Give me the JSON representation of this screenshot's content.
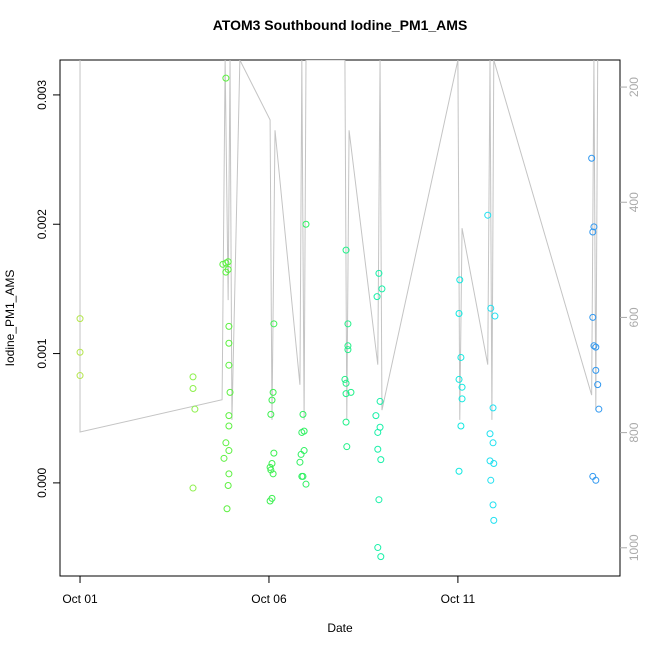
{
  "chart_data": {
    "type": "scatter",
    "title": "ATOM3 Southbound Iodine_PM1_AMS",
    "x_label": "Date",
    "y_label": "Iodine_PM1_AMS",
    "xlim": [
      0.47,
      15.29
    ],
    "ylim": [
      -0.00072,
      0.00327
    ],
    "y2lim": [
      1049,
      153
    ],
    "xticks": [
      {
        "value": 1,
        "label": "Oct 01"
      },
      {
        "value": 6,
        "label": "Oct 06"
      },
      {
        "value": 11,
        "label": "Oct 11"
      }
    ],
    "yticks": [
      {
        "value": 0,
        "label": "0.000"
      },
      0.001,
      0.002,
      0.003
    ],
    "y2ticks": [
      200,
      400,
      600,
      800,
      1000
    ],
    "series": [
      {
        "color": "#b4e64b",
        "x": [
          1.0,
          1.0,
          1.0
        ],
        "values": [
          0.00127,
          0.00101,
          0.00083
        ]
      },
      {
        "color": "#8cf04a",
        "x": [
          3.99,
          3.99,
          4.04,
          3.99
        ],
        "values": [
          0.00082,
          0.00073,
          0.00057,
          -4e-05
        ]
      },
      {
        "color": "#5cf040",
        "x": [
          4.78,
          4.86,
          4.92,
          4.86,
          4.92,
          4.86,
          4.94,
          4.94,
          4.94,
          4.97,
          4.94,
          4.94,
          4.86,
          4.81,
          4.94,
          4.94,
          4.92,
          4.89
        ],
        "values": [
          0.00169,
          0.0017,
          0.00165,
          0.00163,
          0.00171,
          0.00313,
          0.00121,
          0.00108,
          0.00091,
          0.0007,
          0.00052,
          0.00044,
          0.00031,
          0.00019,
          0.00025,
          7e-05,
          -2e-05,
          -0.0002
        ]
      },
      {
        "color": "#3cf050",
        "x": [
          6.13,
          6.11,
          6.08,
          6.05,
          6.13,
          6.08,
          6.03,
          6.05,
          6.11,
          6.03,
          6.08
        ],
        "values": [
          0.00123,
          0.0007,
          0.00064,
          0.00053,
          0.00023,
          0.00015,
          0.00012,
          0.0001,
          7e-05,
          -0.00014,
          -0.00012
        ]
      },
      {
        "color": "#2ef060",
        "x": [
          6.98,
          6.9,
          6.93,
          6.87,
          6.93,
          6.85,
          6.82,
          6.9,
          6.87,
          6.98
        ],
        "values": [
          0.002,
          0.00053,
          0.0004,
          0.00039,
          0.00025,
          0.00022,
          0.00016,
          5e-05,
          5e-05,
          -1e-05
        ]
      },
      {
        "color": "#20f088",
        "x": [
          8.04,
          8.09,
          8.09,
          8.09,
          8.01,
          8.04,
          8.17,
          8.04,
          8.04,
          8.06
        ],
        "values": [
          0.0018,
          0.00123,
          0.00106,
          0.00103,
          0.0008,
          0.00077,
          0.0007,
          0.00069,
          0.00047,
          0.00028
        ]
      },
      {
        "color": "#18f0a8",
        "x": [
          8.91,
          8.99,
          8.86,
          8.94,
          8.83,
          8.94,
          8.88,
          8.88,
          8.96,
          8.91,
          8.88,
          8.96
        ],
        "values": [
          0.00162,
          0.0015,
          0.00144,
          0.00063,
          0.00052,
          0.00043,
          0.00039,
          0.00026,
          0.00018,
          -0.00013,
          -0.0005,
          -0.00057
        ]
      },
      {
        "color": "#10e8e0",
        "x": [
          11.05,
          11.03,
          11.08,
          11.03,
          11.11,
          11.11,
          11.08,
          11.03
        ],
        "values": [
          0.00157,
          0.00131,
          0.00097,
          0.0008,
          0.00074,
          0.00065,
          0.00044,
          9e-05
        ]
      },
      {
        "color": "#20e0f0",
        "x": [
          11.79,
          11.87,
          11.98,
          11.93,
          11.85,
          11.93,
          11.85,
          11.95,
          11.87,
          11.93,
          11.95
        ],
        "values": [
          0.00207,
          0.00135,
          0.00129,
          0.00058,
          0.00038,
          0.00031,
          0.00017,
          0.00015,
          2e-05,
          -0.00017,
          -0.00029
        ]
      },
      {
        "color": "#3098f0",
        "x": [
          14.54,
          14.6,
          14.57,
          14.57,
          14.6,
          14.65,
          14.65,
          14.7,
          14.73,
          14.57,
          14.65
        ],
        "values": [
          0.00251,
          0.00198,
          0.00194,
          0.00128,
          0.00106,
          0.00105,
          0.00087,
          0.00076,
          0.00057,
          5e-05,
          2e-05
        ]
      },
      {
        "type": "line",
        "axis": "y2",
        "color": "#c4c4c4",
        "x": [
          1.0,
          1.0,
          4.76,
          4.84,
          4.92,
          4.97,
          5.02,
          5.23,
          6.03,
          6.08,
          6.16,
          6.82,
          6.87,
          6.93,
          6.98,
          8.01,
          8.06,
          8.12,
          8.88,
          8.94,
          8.99,
          11.0,
          11.05,
          11.11,
          11.79,
          11.85,
          11.9,
          11.95,
          14.54,
          14.6,
          14.65,
          14.7
        ],
        "values": [
          153,
          799,
          743,
          153,
          570,
          153,
          778,
          153,
          257,
          778,
          275,
          717,
          153,
          778,
          153,
          153,
          778,
          275,
          682,
          153,
          761,
          153,
          778,
          445,
          682,
          153,
          778,
          153,
          735,
          153,
          761,
          153
        ]
      }
    ]
  }
}
